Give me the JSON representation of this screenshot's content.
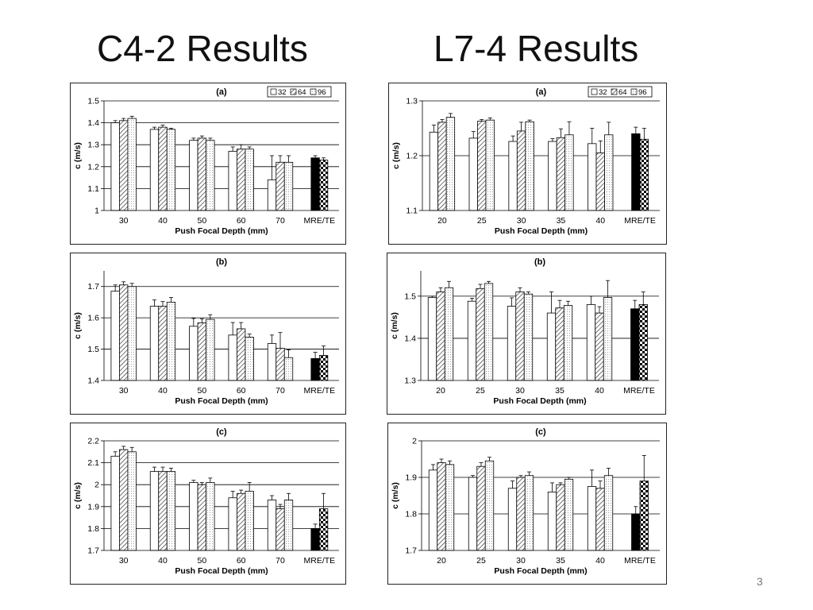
{
  "slide": {
    "title_left": "C4-2 Results",
    "title_right": "L7-4 Results",
    "page_number": "3"
  },
  "styles": {
    "fill_32": "#ffffff",
    "fill_64": "hatch-diagonal",
    "fill_96": "dots",
    "mre_32": "#000000",
    "mre_64": "checkerboard",
    "grid": "#000000",
    "bar_stroke": "#000000"
  },
  "chart_data": [
    {
      "id": "c42-a",
      "type": "bar",
      "panel_label": "(a)",
      "ylabel": "c (m/s)",
      "xlabel": "Push Focal Depth (mm)",
      "categories": [
        "30",
        "40",
        "50",
        "60",
        "70",
        "MRE/TE"
      ],
      "ylim": [
        1.0,
        1.5
      ],
      "yticks": [
        "1",
        "1.1",
        "1.2",
        "1.3",
        "1.4",
        "1.5"
      ],
      "legend": [
        "32",
        "64",
        "96"
      ],
      "legend_position": "top-right",
      "grid": true,
      "series": [
        {
          "name": "32",
          "values": [
            1.4,
            1.37,
            1.32,
            1.27,
            1.14,
            1.24
          ],
          "errors": [
            0.01,
            0.01,
            0.01,
            0.02,
            0.11,
            0.01
          ]
        },
        {
          "name": "64",
          "values": [
            1.41,
            1.38,
            1.33,
            1.28,
            1.22,
            1.23
          ],
          "errors": [
            0.01,
            0.01,
            0.01,
            0.02,
            0.03,
            0.01
          ]
        },
        {
          "name": "96",
          "values": [
            1.42,
            1.37,
            1.32,
            1.28,
            1.22,
            null
          ],
          "errors": [
            0.01,
            0.005,
            0.01,
            0.01,
            0.03,
            null
          ]
        }
      ]
    },
    {
      "id": "l74-a",
      "type": "bar",
      "panel_label": "(a)",
      "ylabel": "c (m/s)",
      "xlabel": "Push Focal Depth (mm)",
      "categories": [
        "20",
        "25",
        "30",
        "35",
        "40",
        "MRE/TE"
      ],
      "ylim": [
        1.1,
        1.3
      ],
      "yticks": [
        "1.1",
        "1.2",
        "1.3"
      ],
      "legend": [
        "32",
        "64",
        "96"
      ],
      "legend_position": "top-right",
      "grid": true,
      "series": [
        {
          "name": "32",
          "values": [
            1.243,
            1.232,
            1.226,
            1.226,
            1.222,
            1.24
          ],
          "errors": [
            0.013,
            0.012,
            0.01,
            0.005,
            0.028,
            0.012
          ]
        },
        {
          "name": "64",
          "values": [
            1.261,
            1.263,
            1.245,
            1.233,
            1.205,
            1.23
          ],
          "errors": [
            0.005,
            0.003,
            0.016,
            0.016,
            0.022,
            0.02
          ]
        },
        {
          "name": "96",
          "values": [
            1.27,
            1.265,
            1.262,
            1.238,
            1.238,
            null
          ],
          "errors": [
            0.007,
            0.004,
            0.003,
            0.024,
            0.023,
            null
          ]
        }
      ]
    },
    {
      "id": "c42-b",
      "type": "bar",
      "panel_label": "(b)",
      "ylabel": "c (m/s)",
      "xlabel": "Push Focal Depth (mm)",
      "categories": [
        "30",
        "40",
        "50",
        "60",
        "70",
        "MRE/TE"
      ],
      "ylim": [
        1.4,
        1.75
      ],
      "yticks": [
        "1.4",
        "1.5",
        "1.6",
        "1.7"
      ],
      "legend": [],
      "grid": true,
      "series": [
        {
          "name": "32",
          "values": [
            1.685,
            1.637,
            1.573,
            1.545,
            1.518,
            1.47
          ],
          "errors": [
            0.02,
            0.02,
            0.025,
            0.04,
            0.027,
            0.02
          ]
        },
        {
          "name": "64",
          "values": [
            1.705,
            1.637,
            1.584,
            1.565,
            1.503,
            1.48
          ],
          "errors": [
            0.01,
            0.015,
            0.013,
            0.02,
            0.05,
            0.03
          ]
        },
        {
          "name": "96",
          "values": [
            1.7,
            1.65,
            1.595,
            1.538,
            1.473,
            null
          ],
          "errors": [
            0.01,
            0.015,
            0.015,
            0.01,
            0.025,
            null
          ]
        }
      ]
    },
    {
      "id": "l74-b",
      "type": "bar",
      "panel_label": "(b)",
      "ylabel": "c (m/s)",
      "xlabel": "Push Focal Depth (mm)",
      "categories": [
        "20",
        "25",
        "30",
        "35",
        "40",
        "MRE/TE"
      ],
      "ylim": [
        1.3,
        1.56
      ],
      "yticks": [
        "1.3",
        "1.4",
        "1.5"
      ],
      "legend": [],
      "grid": true,
      "series": [
        {
          "name": "32",
          "values": [
            1.497,
            1.488,
            1.476,
            1.46,
            1.48,
            1.47
          ],
          "errors": [
            0.003,
            0.007,
            0.02,
            0.05,
            0.02,
            0.02
          ]
        },
        {
          "name": "64",
          "values": [
            1.51,
            1.518,
            1.51,
            1.472,
            1.46,
            1.48
          ],
          "errors": [
            0.01,
            0.01,
            0.01,
            0.018,
            0.015,
            0.03
          ]
        },
        {
          "name": "96",
          "values": [
            1.52,
            1.53,
            1.505,
            1.478,
            1.497,
            null
          ],
          "errors": [
            0.015,
            0.005,
            0.005,
            0.01,
            0.04,
            null
          ]
        }
      ]
    },
    {
      "id": "c42-c",
      "type": "bar",
      "panel_label": "(c)",
      "ylabel": "c (m/s)",
      "xlabel": "Push Focal Depth (mm)",
      "categories": [
        "30",
        "40",
        "50",
        "60",
        "70",
        "MRE/TE"
      ],
      "ylim": [
        1.7,
        2.2
      ],
      "yticks": [
        "1.7",
        "1.8",
        "1.9",
        "2",
        "2.1",
        "2.2"
      ],
      "legend": [],
      "grid": true,
      "series": [
        {
          "name": "32",
          "values": [
            2.13,
            2.06,
            2.01,
            1.94,
            1.93,
            1.8
          ],
          "errors": [
            0.02,
            0.02,
            0.01,
            0.03,
            0.02,
            0.02
          ]
        },
        {
          "name": "64",
          "values": [
            2.16,
            2.06,
            2.0,
            1.96,
            1.89,
            1.89
          ],
          "errors": [
            0.015,
            0.02,
            0.01,
            0.015,
            0.02,
            0.07
          ]
        },
        {
          "name": "96",
          "values": [
            2.15,
            2.06,
            2.01,
            1.97,
            1.93,
            null
          ],
          "errors": [
            0.02,
            0.015,
            0.02,
            0.04,
            0.03,
            null
          ]
        }
      ]
    },
    {
      "id": "l74-c",
      "type": "bar",
      "panel_label": "(c)",
      "ylabel": "c (m/s)",
      "xlabel": "Push Focal Depth (mm)",
      "categories": [
        "20",
        "25",
        "30",
        "35",
        "40",
        "MRE/TE"
      ],
      "ylim": [
        1.7,
        2.0
      ],
      "yticks": [
        "1.7",
        "1.8",
        "1.9",
        "2"
      ],
      "legend": [],
      "grid": true,
      "series": [
        {
          "name": "32",
          "values": [
            1.92,
            1.9,
            1.87,
            1.86,
            1.875,
            1.8
          ],
          "errors": [
            0.015,
            0.005,
            0.02,
            0.025,
            0.045,
            0.02
          ]
        },
        {
          "name": "64",
          "values": [
            1.94,
            1.93,
            1.9,
            1.88,
            1.87,
            1.89
          ],
          "errors": [
            0.01,
            0.01,
            0.005,
            0.005,
            0.02,
            0.07
          ]
        },
        {
          "name": "96",
          "values": [
            1.935,
            1.945,
            1.905,
            1.895,
            1.905,
            null
          ],
          "errors": [
            0.01,
            0.01,
            0.01,
            0.005,
            0.02,
            null
          ]
        }
      ]
    }
  ]
}
